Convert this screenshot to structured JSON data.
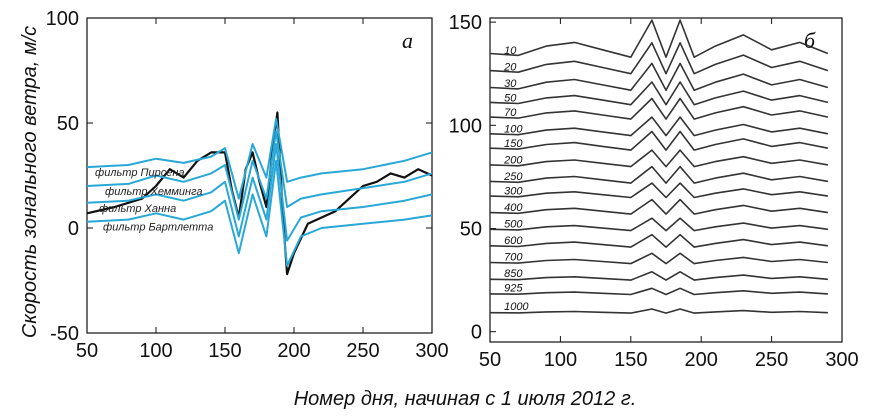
{
  "figure": {
    "xlabel": "Номер дня, начиная с 1 июля 2012 г.",
    "ylabel": "Скорость зонального ветра, м/с"
  },
  "chart_data": [
    {
      "type": "line",
      "panel_label": "а",
      "xlim": [
        50,
        300
      ],
      "ylim": [
        -50,
        100
      ],
      "x_ticks": [
        50,
        100,
        150,
        200,
        250,
        300
      ],
      "y_ticks": [
        -50,
        0,
        50,
        100
      ],
      "grid": false,
      "series": [
        {
          "name": "",
          "color": "#111111",
          "x": [
            50,
            70,
            90,
            100,
            110,
            120,
            130,
            140,
            150,
            155,
            160,
            165,
            170,
            175,
            180,
            185,
            188,
            192,
            195,
            200,
            205,
            210,
            220,
            230,
            240,
            250,
            260,
            270,
            280,
            290,
            300
          ],
          "y": [
            7,
            10,
            14,
            20,
            28,
            24,
            32,
            36,
            36,
            18,
            5,
            28,
            36,
            22,
            10,
            40,
            55,
            5,
            -22,
            -12,
            -5,
            2,
            5,
            8,
            14,
            20,
            22,
            26,
            24,
            28,
            25
          ]
        },
        {
          "name": "фильтр Пирсена",
          "color": "#29a8d8",
          "x": [
            50,
            80,
            100,
            120,
            140,
            150,
            160,
            170,
            180,
            187,
            195,
            205,
            220,
            250,
            280,
            300
          ],
          "y": [
            29,
            30,
            33,
            31,
            34,
            38,
            14,
            40,
            24,
            52,
            22,
            24,
            26,
            28,
            32,
            36
          ]
        },
        {
          "name": "фильтр Хемминга",
          "color": "#29a8d8",
          "x": [
            50,
            80,
            100,
            120,
            140,
            150,
            160,
            170,
            180,
            187,
            195,
            205,
            220,
            250,
            280,
            300
          ],
          "y": [
            20,
            21,
            25,
            22,
            26,
            30,
            4,
            32,
            14,
            46,
            10,
            14,
            16,
            19,
            22,
            26
          ]
        },
        {
          "name": "фильтр Ханна",
          "color": "#29a8d8",
          "x": [
            50,
            80,
            100,
            120,
            140,
            150,
            160,
            170,
            180,
            187,
            195,
            205,
            220,
            250,
            280,
            300
          ],
          "y": [
            12,
            13,
            16,
            13,
            17,
            22,
            -4,
            24,
            4,
            40,
            -6,
            5,
            8,
            10,
            13,
            16
          ]
        },
        {
          "name": "фильтр Бартлетта",
          "color": "#29a8d8",
          "x": [
            50,
            80,
            100,
            120,
            140,
            150,
            160,
            170,
            180,
            187,
            195,
            205,
            220,
            250,
            280,
            300
          ],
          "y": [
            3,
            4,
            7,
            4,
            8,
            13,
            -12,
            16,
            -4,
            32,
            -18,
            -4,
            0,
            2,
            4,
            6
          ]
        }
      ]
    },
    {
      "type": "line",
      "panel_label": "б",
      "xlim": [
        50,
        300
      ],
      "ylim": [
        -5,
        152
      ],
      "x_ticks": [
        50,
        100,
        150,
        200,
        250,
        300
      ],
      "y_ticks": [
        0,
        50,
        100,
        150
      ],
      "grid": false,
      "profile_days": [
        50,
        70,
        90,
        110,
        130,
        150,
        165,
        175,
        185,
        195,
        210,
        230,
        250,
        270,
        290
      ],
      "profile_shape": [
        0.1,
        0.05,
        0.3,
        0.4,
        0.2,
        0.0,
        1.0,
        0.0,
        1.0,
        0.0,
        0.3,
        0.6,
        0.2,
        0.4,
        0.1
      ],
      "series": [
        {
          "name": "10",
          "baseline": 133,
          "amplitude": 18
        },
        {
          "name": "20",
          "baseline": 125,
          "amplitude": 15
        },
        {
          "name": "30",
          "baseline": 117,
          "amplitude": 13
        },
        {
          "name": "50",
          "baseline": 110,
          "amplitude": 11
        },
        {
          "name": "70",
          "baseline": 103,
          "amplitude": 10
        },
        {
          "name": "100",
          "baseline": 95,
          "amplitude": 9
        },
        {
          "name": "150",
          "baseline": 88,
          "amplitude": 9
        },
        {
          "name": "200",
          "baseline": 80,
          "amplitude": 8
        },
        {
          "name": "250",
          "baseline": 72,
          "amplitude": 8
        },
        {
          "name": "300",
          "baseline": 65,
          "amplitude": 7
        },
        {
          "name": "400",
          "baseline": 57,
          "amplitude": 7
        },
        {
          "name": "500",
          "baseline": 49,
          "amplitude": 6
        },
        {
          "name": "600",
          "baseline": 41,
          "amplitude": 6
        },
        {
          "name": "700",
          "baseline": 33,
          "amplitude": 5
        },
        {
          "name": "850",
          "baseline": 25,
          "amplitude": 4
        },
        {
          "name": "925",
          "baseline": 18,
          "amplitude": 3
        },
        {
          "name": "1000",
          "baseline": 9,
          "amplitude": 2
        }
      ]
    }
  ]
}
